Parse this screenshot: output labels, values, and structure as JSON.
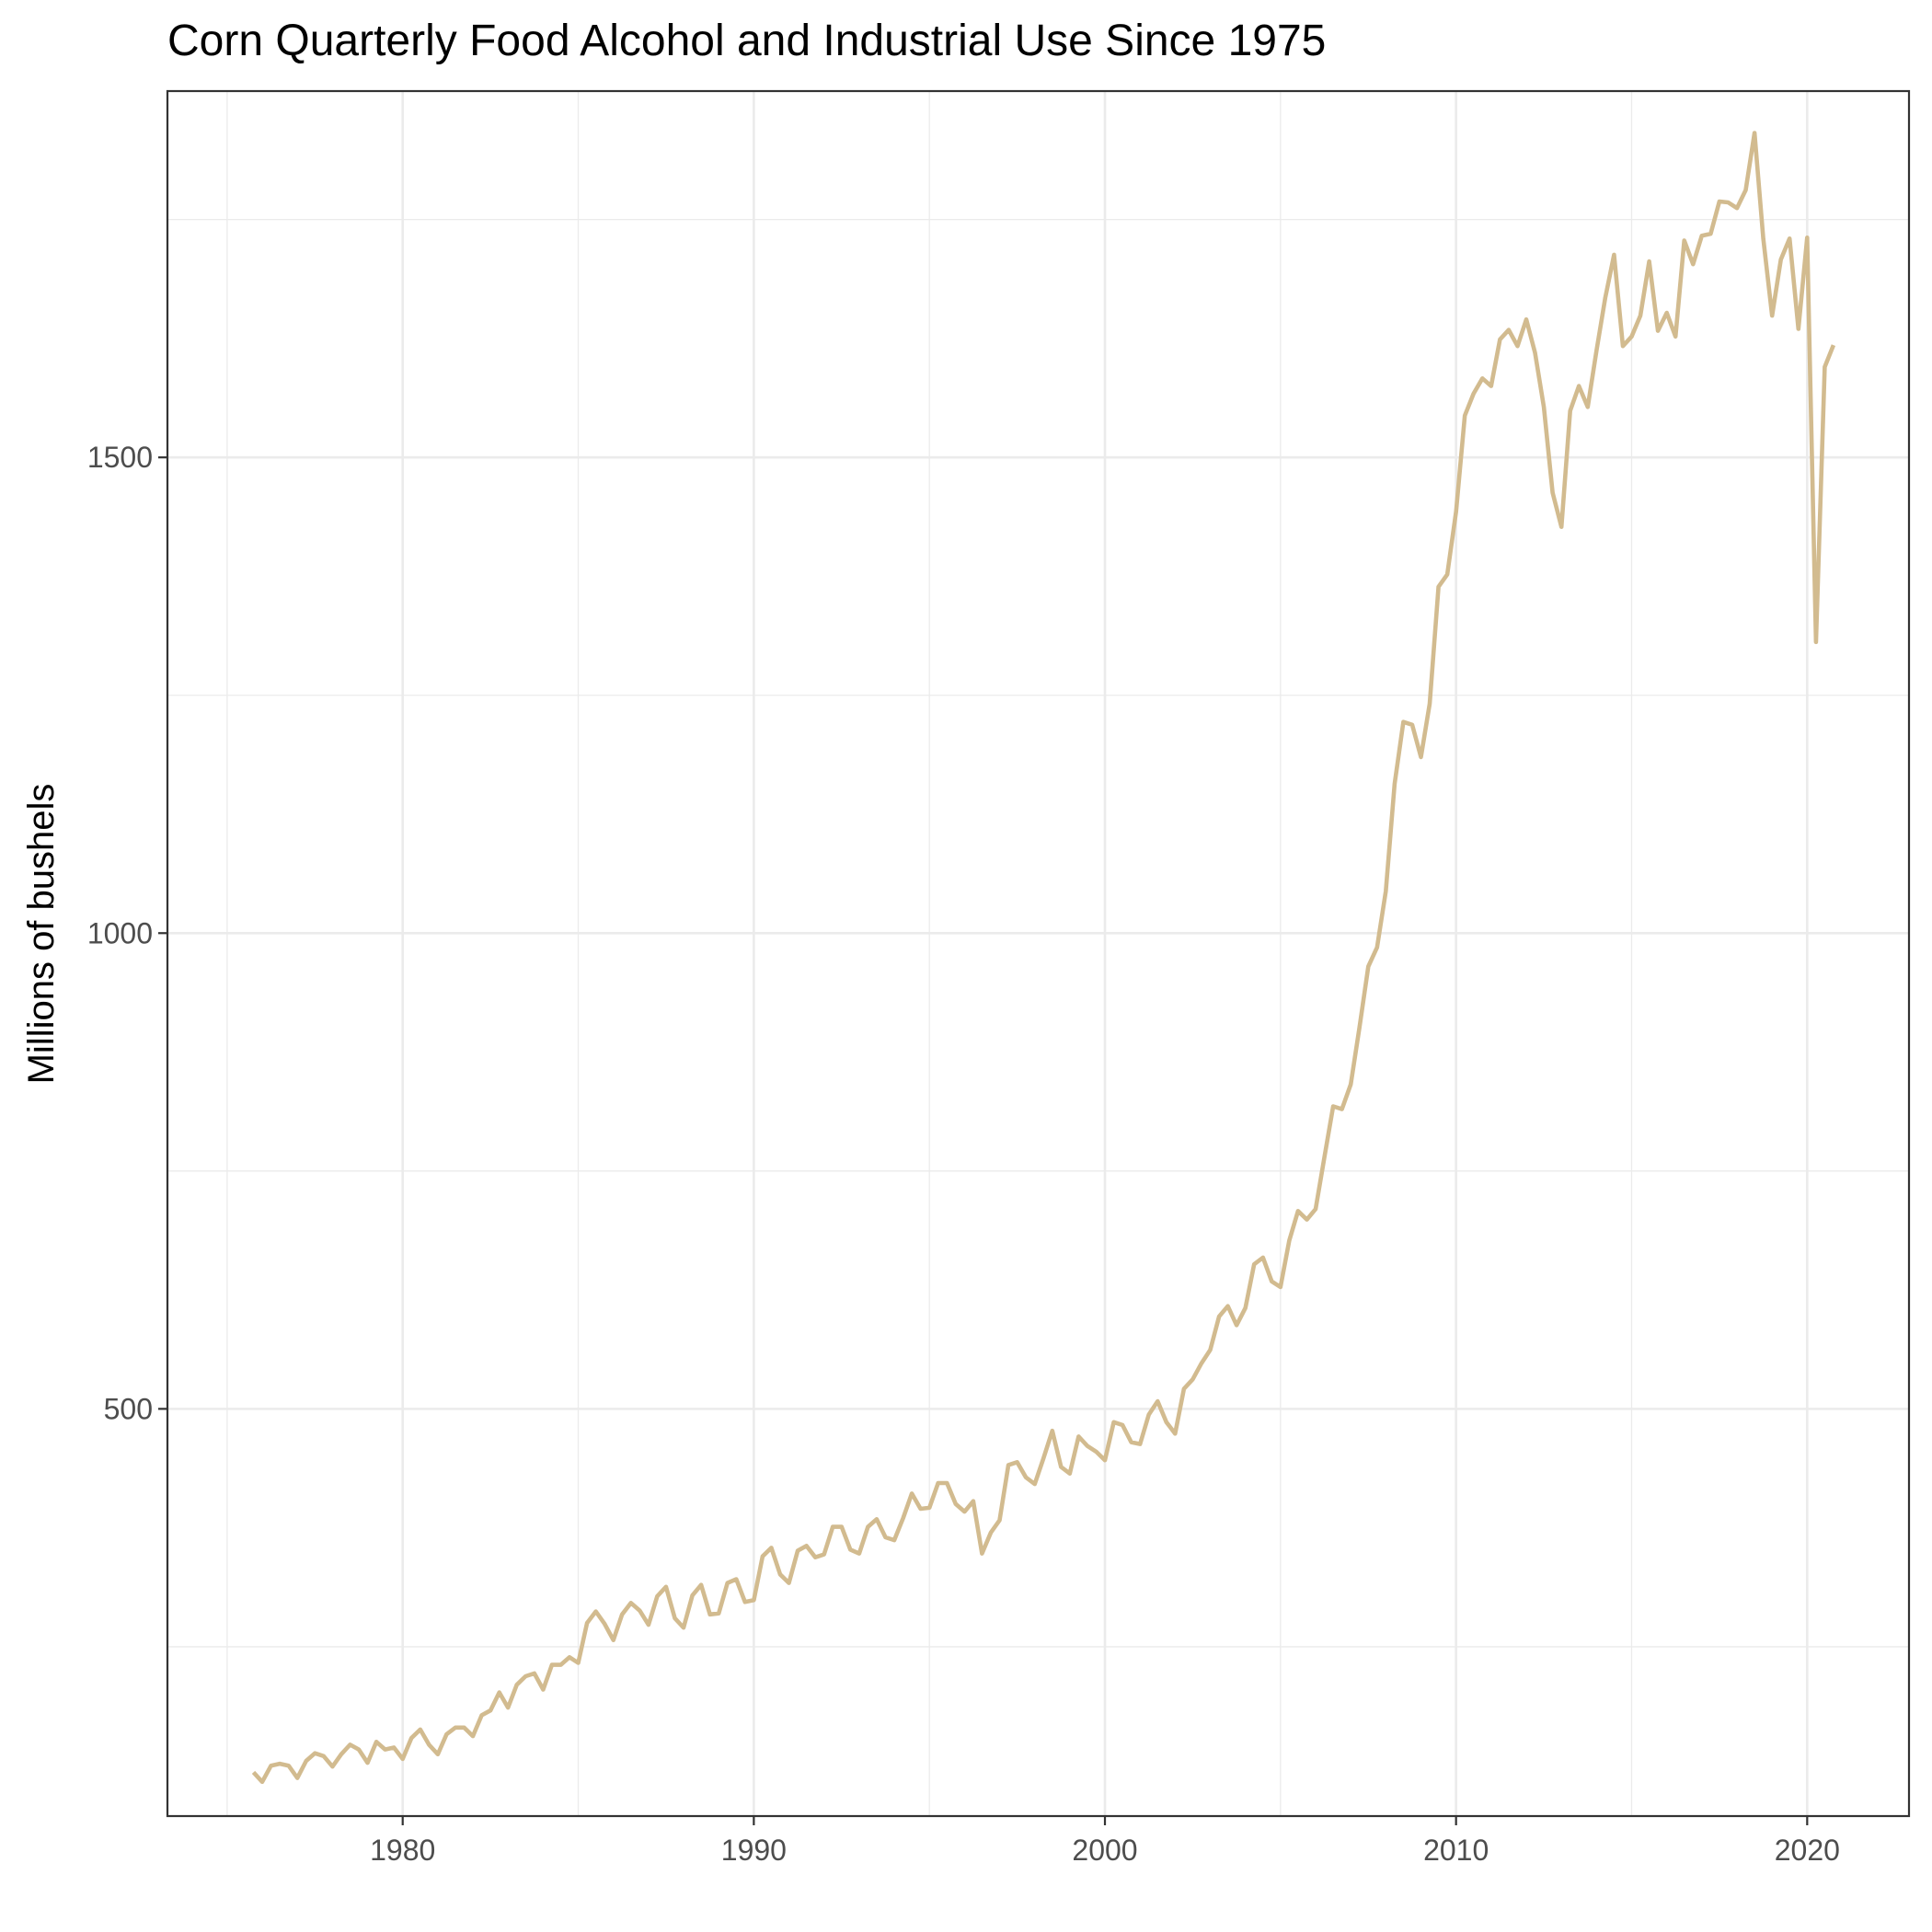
{
  "chart_data": {
    "type": "line",
    "title": "Corn Quarterly Food Alcohol and Industrial Use Since 1975",
    "xlabel": "",
    "ylabel": "Millions of bushels",
    "x_ticks": [
      1980,
      1990,
      2000,
      2010,
      2020
    ],
    "y_ticks": [
      500,
      1000,
      1500
    ],
    "xlim": [
      1973.3,
      2022.9
    ],
    "ylim": [
      72,
      1885
    ],
    "grid": true,
    "legend": "none",
    "color": "#d2bb8f",
    "series": [
      {
        "x": [
          1975.75,
          1976.0,
          1976.25,
          1976.5,
          1976.75,
          1977.0,
          1977.25,
          1977.5,
          1977.75,
          1978.0,
          1978.25,
          1978.5,
          1978.75,
          1979.0,
          1979.25,
          1979.5,
          1979.75,
          1980.0,
          1980.25,
          1980.5,
          1980.75,
          1981.0,
          1981.25,
          1981.5,
          1981.75,
          1982.0,
          1982.25,
          1982.5,
          1982.75,
          1983.0,
          1983.25,
          1983.5,
          1983.75,
          1984.0,
          1984.25,
          1984.5,
          1984.75,
          1985.0,
          1985.25,
          1985.5,
          1985.75,
          1986.0,
          1986.25,
          1986.5,
          1986.75,
          1987.0,
          1987.25,
          1987.5,
          1987.75,
          1988.0,
          1988.25,
          1988.5,
          1988.75,
          1989.0,
          1989.25,
          1989.5,
          1989.75,
          1990.0,
          1990.25,
          1990.5,
          1990.75,
          1991.0,
          1991.25,
          1991.5,
          1991.75,
          1992.0,
          1992.25,
          1992.5,
          1992.75,
          1993.0,
          1993.25,
          1993.5,
          1993.75,
          1994.0,
          1994.25,
          1994.5,
          1994.75,
          1995.0,
          1995.25,
          1995.5,
          1995.75,
          1996.0,
          1996.25,
          1996.5,
          1996.75,
          1997.0,
          1997.25,
          1997.5,
          1997.75,
          1998.0,
          1998.25,
          1998.5,
          1998.75,
          1999.0,
          1999.25,
          1999.5,
          1999.75,
          2000.0,
          2000.25,
          2000.5,
          2000.75,
          2001.0,
          2001.25,
          2001.5,
          2001.75,
          2002.0,
          2002.25,
          2002.5,
          2002.75,
          2003.0,
          2003.25,
          2003.5,
          2003.75,
          2004.0,
          2004.25,
          2004.5,
          2004.75,
          2005.0,
          2005.25,
          2005.5,
          2005.75,
          2006.0,
          2006.25,
          2006.5,
          2006.75,
          2007.0,
          2007.25,
          2007.5,
          2007.75,
          2008.0,
          2008.25,
          2008.5,
          2008.75,
          2009.0,
          2009.25,
          2009.5,
          2009.75,
          2010.0,
          2010.25,
          2010.5,
          2010.75,
          2011.0,
          2011.25,
          2011.5,
          2011.75,
          2012.0,
          2012.25,
          2012.5,
          2012.75,
          2013.0,
          2013.25,
          2013.5,
          2013.75,
          2014.0,
          2014.25,
          2014.5,
          2014.75,
          2015.0,
          2015.25,
          2015.5,
          2015.75,
          2016.0,
          2016.25,
          2016.5,
          2016.75,
          2017.0,
          2017.25,
          2017.5,
          2017.75,
          2018.0,
          2018.25,
          2018.5,
          2018.75,
          2019.0,
          2019.25,
          2019.5,
          2019.75,
          2020.0,
          2020.25,
          2020.5,
          2020.75
        ],
        "values": [
          118,
          108,
          125,
          127,
          125,
          112,
          130,
          138,
          135,
          124,
          137,
          147,
          142,
          128,
          150,
          142,
          144,
          132,
          154,
          163,
          147,
          137,
          158,
          165,
          165,
          156,
          178,
          183,
          202,
          186,
          210,
          219,
          222,
          205,
          231,
          231,
          239,
          233,
          275,
          287,
          274,
          257,
          284,
          296,
          288,
          273,
          303,
          313,
          280,
          270,
          304,
          315,
          284,
          285,
          317,
          321,
          297,
          299,
          345,
          354,
          326,
          317,
          351,
          356,
          344,
          347,
          376,
          376,
          352,
          348,
          376,
          384,
          365,
          362,
          385,
          411,
          395,
          396,
          422,
          422,
          400,
          392,
          403,
          348,
          370,
          383,
          441,
          444,
          428,
          421,
          448,
          477,
          439,
          432,
          471,
          461,
          455,
          446,
          486,
          483,
          465,
          463,
          494,
          508,
          486,
          474,
          521,
          531,
          548,
          562,
          597,
          608,
          588,
          606,
          652,
          659,
          634,
          628,
          677,
          708,
          699,
          710,
          764,
          818,
          815,
          841,
          901,
          965,
          985,
          1044,
          1157,
          1222,
          1219,
          1185,
          1241,
          1364,
          1377,
          1443,
          1544,
          1567,
          1583,
          1575,
          1624,
          1634,
          1617,
          1645,
          1610,
          1553,
          1463,
          1427,
          1549,
          1575,
          1553,
          1612,
          1668,
          1713,
          1617,
          1627,
          1649,
          1706,
          1633,
          1652,
          1627,
          1728,
          1703,
          1733,
          1735,
          1769,
          1768,
          1762,
          1781,
          1841,
          1730,
          1649,
          1708,
          1730,
          1635,
          1731,
          1306,
          1595,
          1618
        ]
      }
    ]
  }
}
